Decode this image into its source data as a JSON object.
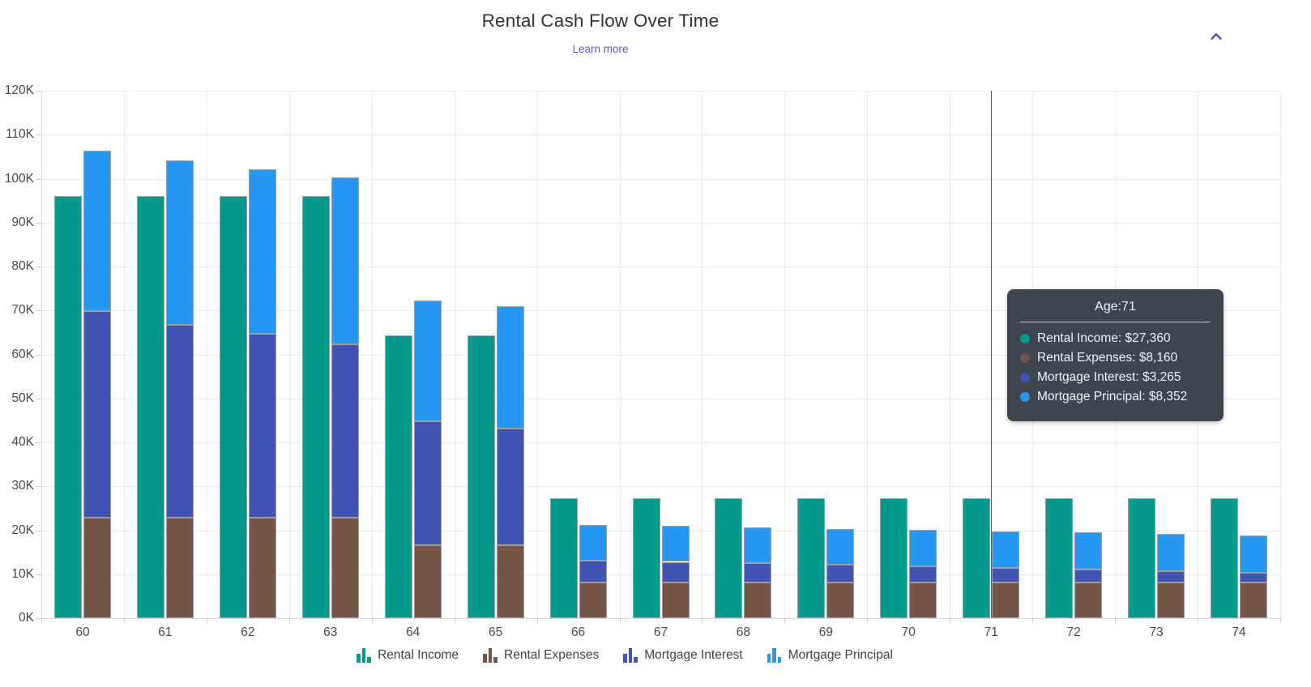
{
  "header": {
    "title": "Rental Cash Flow Over Time",
    "learn_more_label": "Learn more"
  },
  "controls": {
    "collapse_icon": "chevron-up-icon",
    "collapse_icon_color": "#5d4aa5"
  },
  "colors": {
    "rental_income": "#019a8c",
    "rental_expenses": "#765548",
    "mortgage_interest": "#4154b3",
    "mortgage_principal": "#2596f2",
    "bar_border": "#9aa0a6",
    "link": "#6a53c4",
    "tooltip_bg": "#3e4551",
    "grid": "#eceaf2",
    "crosshair": "#5c6066"
  },
  "chart_data": {
    "type": "bar",
    "title": "Rental Cash Flow Over Time",
    "xlabel": "Age",
    "ylabel": "",
    "categories": [
      60,
      61,
      62,
      63,
      64,
      65,
      66,
      67,
      68,
      69,
      70,
      71,
      72,
      73,
      74
    ],
    "series": [
      {
        "name": "Rental Income",
        "color_key": "rental_income",
        "group": "income",
        "values": [
          96000,
          96000,
          96000,
          96000,
          64400,
          64400,
          27360,
          27360,
          27360,
          27360,
          27360,
          27360,
          27360,
          27360,
          27360
        ]
      },
      {
        "name": "Rental Expenses",
        "color_key": "rental_expenses",
        "group": "costs-stack",
        "values": [
          22900,
          22900,
          22900,
          22900,
          16600,
          16600,
          8160,
          8160,
          8160,
          8160,
          8160,
          8160,
          8160,
          8160,
          8160
        ]
      },
      {
        "name": "Mortgage Interest",
        "color_key": "mortgage_interest",
        "group": "costs-stack",
        "values": [
          46900,
          43900,
          41800,
          39400,
          28200,
          26600,
          5000,
          4650,
          4300,
          3950,
          3610,
          3265,
          2920,
          2570,
          2220
        ]
      },
      {
        "name": "Mortgage Principal",
        "color_key": "mortgage_principal",
        "group": "costs-stack",
        "values": [
          36600,
          37400,
          37500,
          37900,
          27400,
          27700,
          8100,
          8150,
          8200,
          8250,
          8300,
          8352,
          8400,
          8450,
          8500
        ]
      }
    ],
    "ylim": [
      0,
      120000
    ],
    "y_tick_labels": [
      "0K",
      "10K",
      "20K",
      "30K",
      "40K",
      "50K",
      "60K",
      "70K",
      "80K",
      "90K",
      "100K",
      "110K",
      "120K"
    ],
    "grid": true,
    "legend_position": "bottom"
  },
  "tooltip": {
    "title": "Age:71",
    "category_index": 11,
    "rows": [
      {
        "label": "Rental Income",
        "value": "$27,360",
        "text": "Rental Income: $27,360",
        "color_key": "rental_income"
      },
      {
        "label": "Rental Expenses",
        "value": "$8,160",
        "text": "Rental Expenses: $8,160",
        "color_key": "rental_expenses"
      },
      {
        "label": "Mortgage Interest",
        "value": "$3,265",
        "text": "Mortgage Interest: $3,265",
        "color_key": "mortgage_interest"
      },
      {
        "label": "Mortgage Principal",
        "value": "$8,352",
        "text": "Mortgage Principal: $8,352",
        "color_key": "mortgage_principal"
      }
    ]
  }
}
